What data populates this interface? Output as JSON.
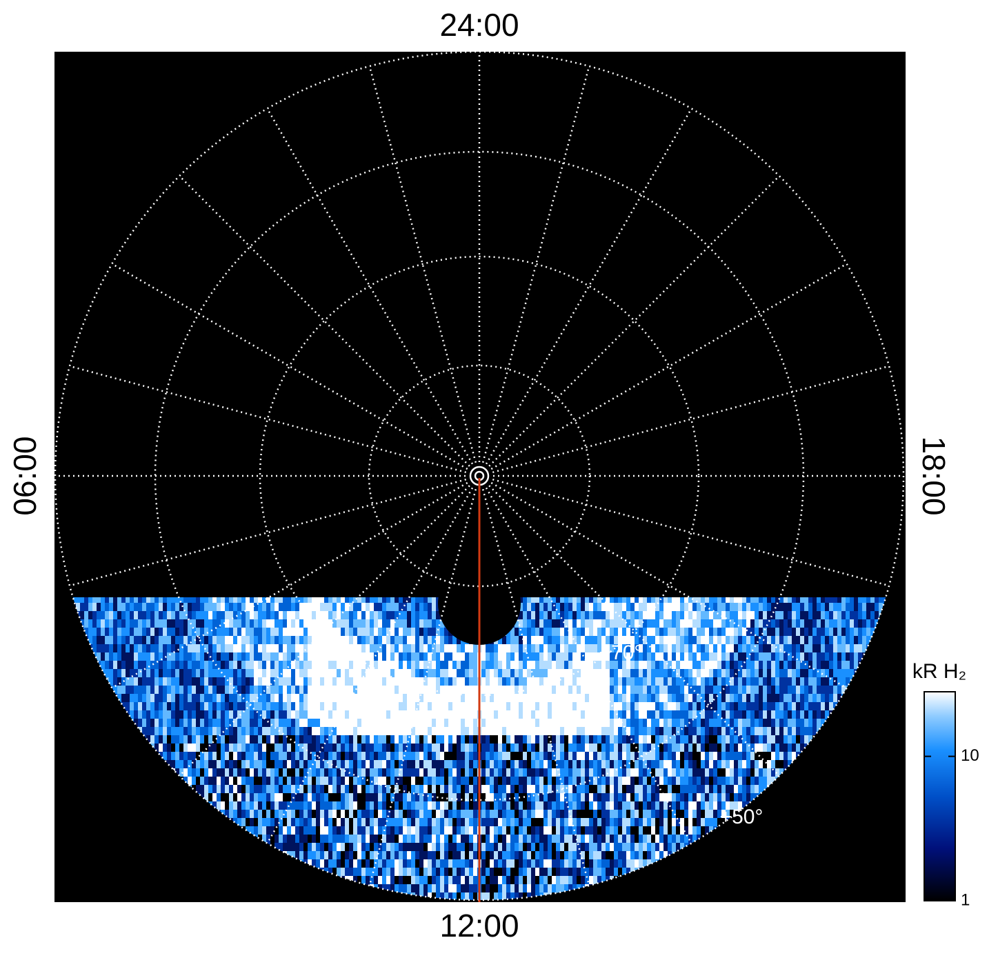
{
  "local_time_labels": {
    "top": "24:00",
    "bottom": "12:00",
    "left": "06:00",
    "right": "18:00"
  },
  "latitude_labels": [
    "+70°",
    "+50°"
  ],
  "colorbar": {
    "label": "kR H₂",
    "scale": "log",
    "lim": [
      1,
      28
    ],
    "ticks": [
      1,
      10
    ]
  }
}
